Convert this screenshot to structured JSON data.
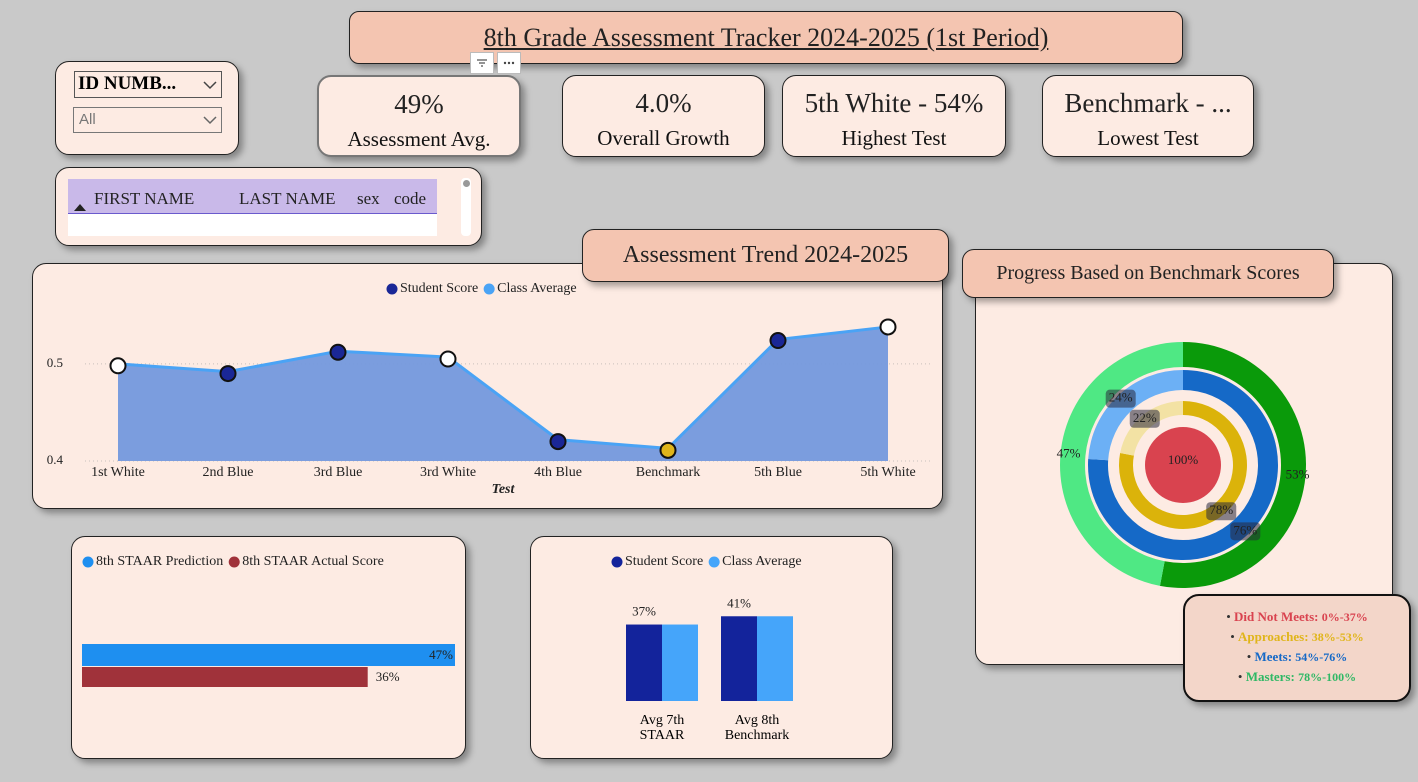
{
  "title": "8th Grade Assessment Tracker 2024-2025 (1st Period)",
  "slicer": {
    "label": "ID NUMB...",
    "value": "All"
  },
  "cards": [
    {
      "value": "49%",
      "label": "Assessment Avg."
    },
    {
      "value": "4.0%",
      "label": "Overall Growth"
    },
    {
      "value": "5th White - 54%",
      "label": "Highest Test"
    },
    {
      "value": "Benchmark - ...",
      "label": "Lowest Test"
    }
  ],
  "table": {
    "columns": [
      "FIRST NAME",
      "LAST NAME",
      "sex",
      "code"
    ]
  },
  "score_legend": {
    "items": [
      {
        "name": "Did Not Meets:",
        "range": "0%-37%",
        "color": "#d9434f"
      },
      {
        "name": "Approaches:",
        "range": "38%-53%",
        "color": "#e0b51a"
      },
      {
        "name": "Meets:",
        "range": "54%-76%",
        "color": "#1569c7"
      },
      {
        "name": "Masters:",
        "range": "78%-100%",
        "color": "#2fb865"
      }
    ]
  },
  "chart_data": [
    {
      "type": "area",
      "title": "Assessment Trend 2024-2025",
      "x_label": "Test",
      "categories": [
        "1st White",
        "2nd Blue",
        "3rd Blue",
        "3rd White",
        "4th Blue",
        "Benchmark",
        "5th Blue",
        "5th White"
      ],
      "series": [
        {
          "name": "Student Score",
          "color": "#1a2796",
          "values": [
            0.498,
            0.49,
            0.512,
            0.505,
            0.42,
            0.411,
            0.524,
            0.538
          ],
          "marker_colors": [
            "#ffffff",
            "#1a2796",
            "#1a2796",
            "#ffffff",
            "#1a2796",
            "#e0b51a",
            "#1a2796",
            "#ffffff"
          ]
        },
        {
          "name": "Class Average",
          "color": "#4aa3f5",
          "fill": "#7499dd",
          "values": [
            0.5,
            0.492,
            0.513,
            0.507,
            0.422,
            0.413,
            0.525,
            0.538
          ]
        }
      ],
      "ylim": [
        0.4,
        0.54
      ],
      "yticks": [
        0.4,
        0.5
      ],
      "grid": true
    },
    {
      "type": "hbar",
      "series": [
        {
          "name": "8th STAAR Prediction",
          "color": "#1e8ff0",
          "values": [
            47
          ],
          "value_labels": [
            "47%"
          ]
        },
        {
          "name": "8th STAAR Actual Score",
          "color": "#a0323a",
          "values": [
            36
          ],
          "value_labels": [
            "36%"
          ]
        }
      ],
      "xlim": [
        0,
        47
      ]
    },
    {
      "type": "bar",
      "categories": [
        "Avg 7th STAAR",
        "Avg 8th Benchmark"
      ],
      "series": [
        {
          "name": "Student Score",
          "color": "#13239b",
          "values": [
            37,
            41
          ],
          "value_labels": [
            "37%",
            "41%"
          ]
        },
        {
          "name": "Class Average",
          "color": "#45a5fa",
          "values": [
            37,
            41
          ]
        }
      ],
      "ylim": [
        0,
        60
      ]
    },
    {
      "type": "donut",
      "title": "Progress Based on Benchmark Scores",
      "rings": [
        {
          "values": [
            53,
            47
          ],
          "value_labels": [
            "53%",
            "47%"
          ],
          "colors": [
            "#0a9a0a",
            "#4fe884"
          ]
        },
        {
          "values": [
            76,
            24
          ],
          "value_labels": [
            "76%",
            "24%"
          ],
          "colors": [
            "#1569c7",
            "#6cb0f5"
          ]
        },
        {
          "values": [
            78,
            22
          ],
          "value_labels": [
            "78%",
            "22%"
          ],
          "colors": [
            "#dbb30a",
            "#f3e2a4"
          ]
        },
        {
          "values": [
            100
          ],
          "value_labels": [
            "100%"
          ],
          "colors": [
            "#d9434f"
          ]
        }
      ]
    }
  ]
}
